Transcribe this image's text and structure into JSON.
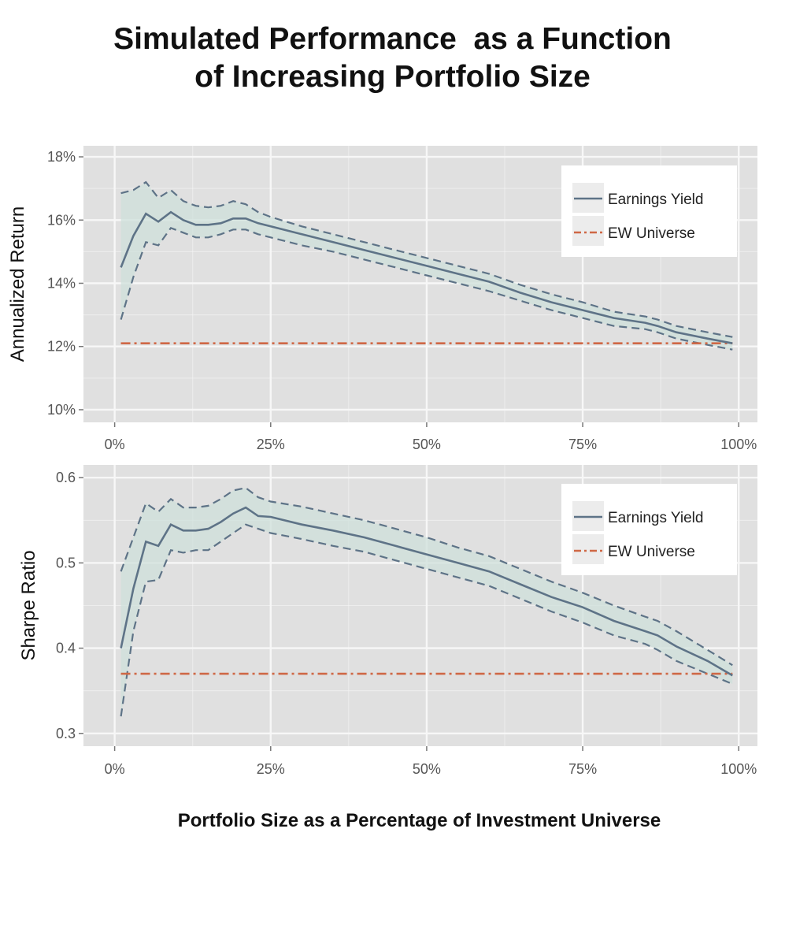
{
  "title_lines": [
    "Simulated Performance  as a Function",
    "of Increasing Portfolio Size"
  ],
  "xlabel": "Portfolio Size as a Percentage of Investment Universe",
  "colors": {
    "panel_bg": "#e0e0e0",
    "grid": "#f7f7f7",
    "line": "#5e7387",
    "band": "#cfe0db",
    "universe": "#cf6846",
    "tick_text": "#555555"
  },
  "chart_data": [
    {
      "type": "line",
      "ylabel": "Annualized Return",
      "xlim": [
        -5,
        103
      ],
      "ylim": [
        9.6,
        18.35
      ],
      "x_ticks": [
        0,
        25,
        50,
        75,
        100
      ],
      "x_tick_labels": [
        "0%",
        "25%",
        "50%",
        "75%",
        "100%"
      ],
      "y_ticks": [
        10,
        12,
        14,
        16,
        18
      ],
      "y_tick_labels": [
        "10%",
        "12%",
        "14%",
        "16%",
        "18%"
      ],
      "legend": [
        "Earnings Yield",
        "EW Universe"
      ],
      "legend_position": "top-right",
      "series": [
        {
          "name": "Earnings Yield",
          "x": [
            1,
            3,
            5,
            7,
            9,
            11,
            13,
            15,
            17,
            19,
            21,
            23,
            25,
            30,
            35,
            40,
            45,
            50,
            55,
            60,
            65,
            70,
            75,
            80,
            85,
            87,
            90,
            95,
            99
          ],
          "y": [
            14.5,
            15.5,
            16.2,
            15.95,
            16.25,
            16.0,
            15.85,
            15.85,
            15.9,
            16.05,
            16.05,
            15.9,
            15.8,
            15.55,
            15.3,
            15.05,
            14.8,
            14.55,
            14.3,
            14.05,
            13.7,
            13.4,
            13.15,
            12.9,
            12.75,
            12.65,
            12.45,
            12.25,
            12.1
          ],
          "upper": [
            16.85,
            16.95,
            17.2,
            16.7,
            16.95,
            16.6,
            16.45,
            16.4,
            16.45,
            16.6,
            16.5,
            16.25,
            16.1,
            15.8,
            15.55,
            15.3,
            15.05,
            14.8,
            14.55,
            14.3,
            13.95,
            13.65,
            13.4,
            13.1,
            12.95,
            12.85,
            12.65,
            12.45,
            12.3
          ],
          "lower": [
            12.85,
            14.2,
            15.3,
            15.2,
            15.75,
            15.6,
            15.45,
            15.45,
            15.55,
            15.7,
            15.7,
            15.55,
            15.45,
            15.2,
            15.0,
            14.75,
            14.5,
            14.25,
            14.0,
            13.75,
            13.45,
            13.15,
            12.9,
            12.65,
            12.55,
            12.45,
            12.25,
            12.05,
            11.9
          ]
        },
        {
          "name": "EW Universe",
          "x": [
            1,
            99
          ],
          "y": [
            12.1,
            12.1
          ]
        }
      ]
    },
    {
      "type": "line",
      "ylabel": "Sharpe Ratio",
      "xlim": [
        -5,
        103
      ],
      "ylim": [
        0.285,
        0.615
      ],
      "x_ticks": [
        0,
        25,
        50,
        75,
        100
      ],
      "x_tick_labels": [
        "0%",
        "25%",
        "50%",
        "75%",
        "100%"
      ],
      "y_ticks": [
        0.3,
        0.4,
        0.5,
        0.6
      ],
      "y_tick_labels": [
        "0.3",
        "0.4",
        "0.5",
        "0.6"
      ],
      "legend": [
        "Earnings Yield",
        "EW Universe"
      ],
      "legend_position": "top-right",
      "series": [
        {
          "name": "Earnings Yield",
          "x": [
            1,
            3,
            5,
            7,
            9,
            11,
            13,
            15,
            17,
            19,
            21,
            23,
            25,
            30,
            35,
            40,
            45,
            50,
            55,
            60,
            65,
            70,
            75,
            80,
            85,
            87,
            90,
            95,
            99
          ],
          "y": [
            0.4,
            0.47,
            0.525,
            0.52,
            0.545,
            0.538,
            0.538,
            0.54,
            0.548,
            0.558,
            0.565,
            0.555,
            0.554,
            0.545,
            0.538,
            0.53,
            0.52,
            0.51,
            0.5,
            0.49,
            0.475,
            0.46,
            0.448,
            0.432,
            0.42,
            0.415,
            0.402,
            0.385,
            0.368
          ],
          "upper": [
            0.49,
            0.53,
            0.57,
            0.56,
            0.575,
            0.565,
            0.565,
            0.567,
            0.575,
            0.585,
            0.588,
            0.577,
            0.572,
            0.566,
            0.558,
            0.55,
            0.54,
            0.53,
            0.518,
            0.508,
            0.493,
            0.478,
            0.465,
            0.45,
            0.437,
            0.432,
            0.42,
            0.398,
            0.38
          ],
          "lower": [
            0.32,
            0.42,
            0.478,
            0.48,
            0.515,
            0.512,
            0.515,
            0.515,
            0.525,
            0.535,
            0.545,
            0.54,
            0.535,
            0.528,
            0.52,
            0.513,
            0.503,
            0.493,
            0.483,
            0.473,
            0.458,
            0.443,
            0.43,
            0.415,
            0.405,
            0.398,
            0.385,
            0.37,
            0.358
          ]
        },
        {
          "name": "EW Universe",
          "x": [
            1,
            99
          ],
          "y": [
            0.37,
            0.37
          ]
        }
      ]
    }
  ]
}
